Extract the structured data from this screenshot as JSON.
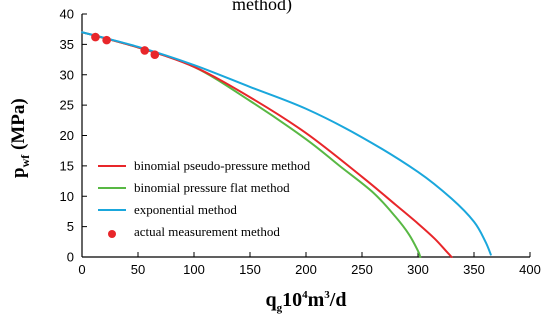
{
  "chart_data": {
    "type": "line",
    "title_fragment": "method)",
    "xlabel": "q_g 10^4 m^3/d",
    "ylabel": "p_wf (MPa)",
    "xlim": [
      0,
      400
    ],
    "ylim": [
      0,
      40
    ],
    "xticks": [
      0,
      50,
      100,
      150,
      200,
      250,
      300,
      350,
      400
    ],
    "yticks": [
      0,
      5,
      10,
      15,
      20,
      25,
      30,
      35,
      40
    ],
    "legend_position": "lower-left",
    "series": [
      {
        "name": "binomial pseudo-pressure method",
        "color": "#e8262a",
        "style": "line",
        "x": [
          0,
          50,
          100,
          150,
          200,
          250,
          280,
          300,
          315,
          325,
          330
        ],
        "y": [
          37,
          34.5,
          31.3,
          26.3,
          20.4,
          13.2,
          8.6,
          5.5,
          3.0,
          1.0,
          0
        ]
      },
      {
        "name": "binomial pressure flat method",
        "color": "#58b844",
        "style": "line",
        "x": [
          0,
          50,
          100,
          150,
          200,
          230,
          260,
          280,
          292,
          300,
          302
        ],
        "y": [
          37,
          34.5,
          31.3,
          25.7,
          19.4,
          15.0,
          10.6,
          6.6,
          3.7,
          1.0,
          0
        ]
      },
      {
        "name": "exponential method",
        "color": "#1aa7dc",
        "style": "line",
        "x": [
          0,
          50,
          100,
          150,
          200,
          250,
          300,
          330,
          350,
          360,
          365
        ],
        "y": [
          37,
          34.6,
          31.6,
          28.0,
          24.4,
          19.7,
          14.0,
          9.6,
          5.8,
          2.6,
          0.4
        ]
      },
      {
        "name": "actual measurement method",
        "color": "#e8262a",
        "style": "scatter",
        "x": [
          12,
          22,
          56,
          65
        ],
        "y": [
          36.2,
          35.7,
          34.0,
          33.3
        ]
      }
    ]
  }
}
